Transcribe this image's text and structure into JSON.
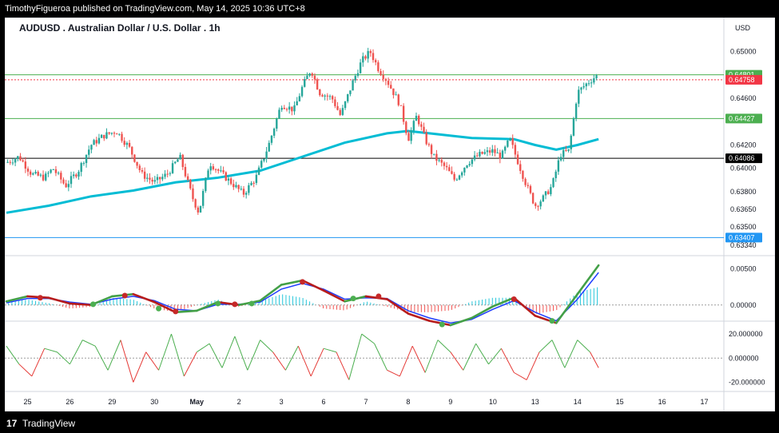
{
  "header": {
    "published_text": "TimothyFigueroa published on TradingView.com, May 14, 2025 10:36 UTC+8"
  },
  "footer": {
    "logo_glyph": "17",
    "brand": "TradingView"
  },
  "chart_data": {
    "type": "candlestick",
    "title": "AUDUSD . Australian Dollar / U.S. Dollar . 1h",
    "currency": "USD",
    "colors": {
      "up": "#26a69a",
      "down": "#ef5350",
      "ma": "#00bcd4",
      "osc_fast": "#43a047",
      "osc_slow": "#1e3cff",
      "osc_down": "#b71c1c",
      "rsi_up": "#4caf50",
      "rsi_down": "#e53935"
    },
    "price_axis": {
      "range": [
        0.6328,
        0.6525
      ],
      "ticks": [
        "0.65000",
        "0.64600",
        "0.64200",
        "0.64000",
        "0.63800",
        "0.63650",
        "0.63500",
        "0.63340"
      ],
      "tick_values": [
        0.65,
        0.646,
        0.642,
        0.64,
        0.638,
        0.6365,
        0.635,
        0.6334
      ]
    },
    "horizontal_levels": [
      {
        "value": 0.64801,
        "label": "0.64801",
        "color": "#4caf50",
        "style": "solid",
        "badge": "#4caf50"
      },
      {
        "value": 0.64758,
        "label": "0.64758",
        "color": "#f23645",
        "style": "dotted",
        "badge": "#f23645"
      },
      {
        "value": 0.64427,
        "label": "0.64427",
        "color": "#4caf50",
        "style": "solid",
        "badge": "#4caf50"
      },
      {
        "value": 0.64086,
        "label": "0.64086",
        "color": "#000000",
        "style": "solid",
        "badge": "#000000"
      },
      {
        "value": 0.63407,
        "label": "0.63407",
        "color": "#2196f3",
        "style": "solid",
        "badge": "#2196f3"
      }
    ],
    "x_axis": {
      "labels": [
        "25",
        "26",
        "29",
        "30",
        "May",
        "2",
        "3",
        "6",
        "7",
        "8",
        "9",
        "10",
        "13",
        "14",
        "15",
        "16",
        "17"
      ],
      "positions": [
        0.5,
        1.5,
        2.5,
        3.5,
        4.5,
        5.5,
        6.5,
        7.5,
        8.5,
        9.5,
        10.5,
        11.5,
        12.5,
        13.5,
        14.5,
        15.5,
        16.5
      ],
      "bold": [
        "May"
      ]
    },
    "price_path": [
      [
        0.0,
        0.6405
      ],
      [
        0.3,
        0.641
      ],
      [
        0.6,
        0.6395
      ],
      [
        0.9,
        0.6392
      ],
      [
        1.1,
        0.64
      ],
      [
        1.4,
        0.6385
      ],
      [
        1.7,
        0.6398
      ],
      [
        2.0,
        0.642
      ],
      [
        2.3,
        0.6428
      ],
      [
        2.6,
        0.6432
      ],
      [
        2.9,
        0.6418
      ],
      [
        3.2,
        0.6395
      ],
      [
        3.5,
        0.6388
      ],
      [
        3.8,
        0.6395
      ],
      [
        4.1,
        0.641
      ],
      [
        4.4,
        0.6375
      ],
      [
        4.55,
        0.6362
      ],
      [
        4.8,
        0.6405
      ],
      [
        5.1,
        0.6395
      ],
      [
        5.4,
        0.6385
      ],
      [
        5.6,
        0.6378
      ],
      [
        5.9,
        0.6392
      ],
      [
        6.2,
        0.642
      ],
      [
        6.5,
        0.6455
      ],
      [
        6.8,
        0.645
      ],
      [
        7.0,
        0.647
      ],
      [
        7.2,
        0.6485
      ],
      [
        7.4,
        0.6465
      ],
      [
        7.7,
        0.646
      ],
      [
        7.9,
        0.6445
      ],
      [
        8.2,
        0.6475
      ],
      [
        8.4,
        0.6492
      ],
      [
        8.6,
        0.65
      ],
      [
        8.8,
        0.6485
      ],
      [
        9.0,
        0.6475
      ],
      [
        9.3,
        0.6455
      ],
      [
        9.5,
        0.6425
      ],
      [
        9.7,
        0.6445
      ],
      [
        9.9,
        0.6425
      ],
      [
        10.1,
        0.641
      ],
      [
        10.4,
        0.64
      ],
      [
        10.6,
        0.639
      ],
      [
        10.9,
        0.6405
      ],
      [
        11.2,
        0.6412
      ],
      [
        11.5,
        0.6415
      ],
      [
        11.7,
        0.641
      ],
      [
        11.9,
        0.6425
      ],
      [
        12.1,
        0.6405
      ],
      [
        12.3,
        0.6385
      ],
      [
        12.5,
        0.6368
      ],
      [
        12.7,
        0.6375
      ],
      [
        12.9,
        0.6385
      ],
      [
        13.1,
        0.6412
      ],
      [
        13.3,
        0.6415
      ],
      [
        13.5,
        0.6465
      ],
      [
        13.7,
        0.6472
      ],
      [
        13.9,
        0.6478
      ],
      [
        14.0,
        0.648
      ]
    ],
    "moving_average": [
      [
        0.0,
        0.6362
      ],
      [
        1.0,
        0.6368
      ],
      [
        2.0,
        0.6376
      ],
      [
        3.0,
        0.6381
      ],
      [
        4.0,
        0.6388
      ],
      [
        5.0,
        0.6392
      ],
      [
        6.0,
        0.6398
      ],
      [
        7.0,
        0.641
      ],
      [
        8.0,
        0.6422
      ],
      [
        9.0,
        0.643
      ],
      [
        9.5,
        0.6432
      ],
      [
        10.0,
        0.643
      ],
      [
        11.0,
        0.6426
      ],
      [
        12.0,
        0.6425
      ],
      [
        12.5,
        0.642
      ],
      [
        13.0,
        0.6416
      ],
      [
        13.5,
        0.642
      ],
      [
        14.0,
        0.6425
      ]
    ],
    "oscillator": {
      "range": [
        -0.0018,
        0.0064
      ],
      "ticks": [
        "0.00500",
        "0.00000"
      ],
      "tick_values": [
        0.005,
        0.0
      ],
      "fast": [
        [
          0.0,
          0.0005
        ],
        [
          0.5,
          0.0012
        ],
        [
          1.0,
          0.001
        ],
        [
          1.5,
          0.0002
        ],
        [
          2.0,
          0.0
        ],
        [
          2.5,
          0.0012
        ],
        [
          3.0,
          0.0015
        ],
        [
          3.5,
          0.0004
        ],
        [
          4.0,
          -0.001
        ],
        [
          4.5,
          -0.0008
        ],
        [
          5.0,
          0.0004
        ],
        [
          5.5,
          0.0
        ],
        [
          6.0,
          0.0006
        ],
        [
          6.5,
          0.0028
        ],
        [
          7.0,
          0.0034
        ],
        [
          7.5,
          0.002
        ],
        [
          8.0,
          0.0005
        ],
        [
          8.5,
          0.0012
        ],
        [
          9.0,
          0.0008
        ],
        [
          9.5,
          -0.0012
        ],
        [
          10.0,
          -0.0022
        ],
        [
          10.5,
          -0.0028
        ],
        [
          11.0,
          -0.0018
        ],
        [
          11.5,
          -0.0002
        ],
        [
          12.0,
          0.001
        ],
        [
          12.5,
          -0.0015
        ],
        [
          13.0,
          -0.0025
        ],
        [
          13.5,
          0.0015
        ],
        [
          14.0,
          0.0055
        ]
      ],
      "slow": [
        [
          0.0,
          0.0003
        ],
        [
          0.5,
          0.0009
        ],
        [
          1.0,
          0.0009
        ],
        [
          1.5,
          0.0004
        ],
        [
          2.0,
          0.0001
        ],
        [
          2.5,
          0.0008
        ],
        [
          3.0,
          0.0012
        ],
        [
          3.5,
          0.0006
        ],
        [
          4.0,
          -0.0006
        ],
        [
          4.5,
          -0.0008
        ],
        [
          5.0,
          0.0001
        ],
        [
          5.5,
          0.0001
        ],
        [
          6.0,
          0.0004
        ],
        [
          6.5,
          0.0022
        ],
        [
          7.0,
          0.003
        ],
        [
          7.5,
          0.0022
        ],
        [
          8.0,
          0.0008
        ],
        [
          8.5,
          0.001
        ],
        [
          9.0,
          0.0009
        ],
        [
          9.5,
          -0.0008
        ],
        [
          10.0,
          -0.0018
        ],
        [
          10.5,
          -0.0025
        ],
        [
          11.0,
          -0.002
        ],
        [
          11.5,
          -0.0006
        ],
        [
          12.0,
          0.0006
        ],
        [
          12.5,
          -0.001
        ],
        [
          13.0,
          -0.0022
        ],
        [
          13.5,
          0.0008
        ],
        [
          14.0,
          0.0045
        ]
      ],
      "cross_markers": [
        {
          "x": 0.8,
          "v": 0.001,
          "kind": "down"
        },
        {
          "x": 2.05,
          "v": 0.0001,
          "kind": "up"
        },
        {
          "x": 2.8,
          "v": 0.0013,
          "kind": "down"
        },
        {
          "x": 3.6,
          "v": -0.0005,
          "kind": "up"
        },
        {
          "x": 4.0,
          "v": -0.0009,
          "kind": "down"
        },
        {
          "x": 5.0,
          "v": 0.0002,
          "kind": "up"
        },
        {
          "x": 5.4,
          "v": 0.0001,
          "kind": "down"
        },
        {
          "x": 5.8,
          "v": 0.0002,
          "kind": "up"
        },
        {
          "x": 7.0,
          "v": 0.0032,
          "kind": "down"
        },
        {
          "x": 8.2,
          "v": 0.0009,
          "kind": "up"
        },
        {
          "x": 8.8,
          "v": 0.0012,
          "kind": "down"
        },
        {
          "x": 10.3,
          "v": -0.0027,
          "kind": "up"
        },
        {
          "x": 12.0,
          "v": 0.0008,
          "kind": "down"
        },
        {
          "x": 12.9,
          "v": -0.0022,
          "kind": "up"
        }
      ]
    },
    "rsi": {
      "range": [
        -25,
        28
      ],
      "ticks": [
        "20.000000",
        "0.000000",
        "-20.000000"
      ],
      "tick_values": [
        20,
        0,
        -20
      ],
      "values": [
        [
          0.0,
          10
        ],
        [
          0.3,
          -5
        ],
        [
          0.6,
          -15
        ],
        [
          0.9,
          8
        ],
        [
          1.2,
          5
        ],
        [
          1.5,
          -5
        ],
        [
          1.8,
          15
        ],
        [
          2.1,
          10
        ],
        [
          2.4,
          -10
        ],
        [
          2.7,
          15
        ],
        [
          3.0,
          -20
        ],
        [
          3.3,
          5
        ],
        [
          3.6,
          -10
        ],
        [
          3.9,
          20
        ],
        [
          4.2,
          -15
        ],
        [
          4.5,
          5
        ],
        [
          4.8,
          12
        ],
        [
          5.1,
          -8
        ],
        [
          5.4,
          18
        ],
        [
          5.7,
          -10
        ],
        [
          6.0,
          15
        ],
        [
          6.3,
          5
        ],
        [
          6.6,
          -10
        ],
        [
          6.9,
          10
        ],
        [
          7.2,
          -15
        ],
        [
          7.5,
          8
        ],
        [
          7.8,
          5
        ],
        [
          8.1,
          -18
        ],
        [
          8.4,
          20
        ],
        [
          8.7,
          12
        ],
        [
          9.0,
          -10
        ],
        [
          9.3,
          -15
        ],
        [
          9.6,
          10
        ],
        [
          9.9,
          -12
        ],
        [
          10.2,
          15
        ],
        [
          10.5,
          5
        ],
        [
          10.8,
          -10
        ],
        [
          11.1,
          12
        ],
        [
          11.4,
          -5
        ],
        [
          11.7,
          8
        ],
        [
          12.0,
          -12
        ],
        [
          12.3,
          -18
        ],
        [
          12.6,
          5
        ],
        [
          12.9,
          15
        ],
        [
          13.2,
          -8
        ],
        [
          13.5,
          15
        ],
        [
          13.8,
          5
        ],
        [
          14.0,
          -8
        ]
      ]
    }
  }
}
